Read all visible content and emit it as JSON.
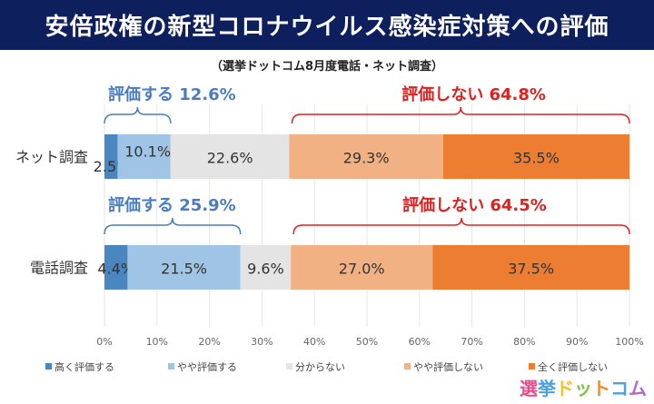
{
  "title": "安倍政権の新型コロナウイルス感染症対策への評価",
  "subtitle": "（選挙ドットコム8月度電話・ネット調査）",
  "logo": "選挙ドットコム",
  "chart_data": {
    "type": "bar",
    "orientation": "horizontal-stacked-100",
    "categories": [
      "ネット調査",
      "電話調査"
    ],
    "series": [
      {
        "name": "高く評価する",
        "color": "#4a86c0",
        "values": [
          2.5,
          4.4
        ]
      },
      {
        "name": "やや評価する",
        "color": "#9fc4e6",
        "values": [
          10.1,
          21.5
        ]
      },
      {
        "name": "分からない",
        "color": "#e4e4e4",
        "values": [
          22.6,
          9.6
        ]
      },
      {
        "name": "やや評価しない",
        "color": "#f2b183",
        "values": [
          29.3,
          27.0
        ]
      },
      {
        "name": "全く評価しない",
        "color": "#ed7d31",
        "values": [
          35.5,
          37.5
        ]
      }
    ],
    "labels": [
      [
        "2.5%",
        "10.1%",
        "22.6%",
        "29.3%",
        "35.5%"
      ],
      [
        "4.4%",
        "21.5%",
        "9.6%",
        "27.0%",
        "37.5%"
      ]
    ],
    "annotations": [
      {
        "row": 0,
        "text": "評価する 12.6%",
        "from": 0,
        "to": 12.6,
        "color": "#4a7cc0"
      },
      {
        "row": 0,
        "text": "評価しない 64.8%",
        "from": 35.2,
        "to": 100,
        "color": "#e0201e"
      },
      {
        "row": 1,
        "text": "評価する 25.9%",
        "from": 0,
        "to": 25.9,
        "color": "#4a7cc0"
      },
      {
        "row": 1,
        "text": "評価しない 64.5%",
        "from": 35.5,
        "to": 100,
        "color": "#e0201e"
      }
    ],
    "xticks": [
      "0%",
      "10%",
      "20%",
      "30%",
      "40%",
      "50%",
      "60%",
      "70%",
      "80%",
      "90%",
      "100%"
    ],
    "xlim": [
      0,
      100
    ],
    "legend_position": "bottom"
  }
}
